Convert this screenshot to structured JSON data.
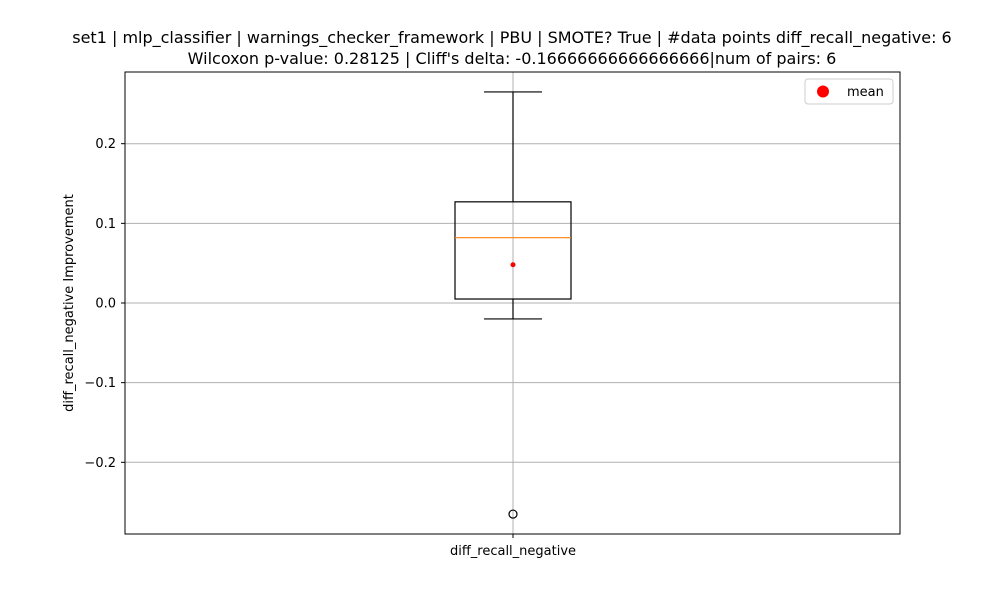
{
  "chart_data": {
    "type": "box",
    "title_line1": "set1 | mlp_classifier | warnings_checker_framework | PBU | SMOTE? True | #data points diff_recall_negative: 6",
    "title_line2": "Wilcoxon p-value: 0.28125 | Cliff's delta: -0.16666666666666666|num of pairs: 6",
    "xlabel": "",
    "ylabel": "diff_recall_negative Improvement",
    "categories": [
      "diff_recall_negative"
    ],
    "ylim": [
      -0.29,
      0.29
    ],
    "yticks": [
      -0.2,
      -0.1,
      0.0,
      0.1,
      0.2
    ],
    "ytick_labels": [
      "−0.2",
      "−0.1",
      "0.0",
      "0.1",
      "0.2"
    ],
    "grid": true,
    "legend": {
      "placement": "top-right",
      "entries": [
        {
          "label": "mean",
          "marker": "circle"
        }
      ]
    },
    "box": {
      "whisker_low": -0.02,
      "q1": 0.005,
      "median": 0.082,
      "q3": 0.127,
      "whisker_high": 0.265,
      "mean": 0.048,
      "outliers": [
        -0.265
      ]
    },
    "colors": {
      "box": "#000000",
      "median": "#ff7f0e",
      "mean": "#ff0000",
      "grid": "#b0b0b0"
    }
  }
}
